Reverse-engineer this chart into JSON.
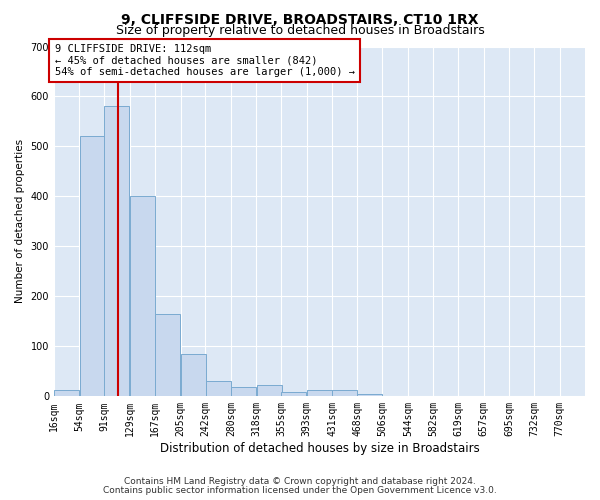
{
  "title": "9, CLIFFSIDE DRIVE, BROADSTAIRS, CT10 1RX",
  "subtitle": "Size of property relative to detached houses in Broadstairs",
  "xlabel": "Distribution of detached houses by size in Broadstairs",
  "ylabel": "Number of detached properties",
  "bin_edges": [
    16,
    54,
    91,
    129,
    167,
    205,
    242,
    280,
    318,
    355,
    393,
    431,
    468,
    506,
    544,
    582,
    619,
    657,
    695,
    732,
    770
  ],
  "bar_heights": [
    12,
    520,
    580,
    400,
    165,
    85,
    30,
    18,
    22,
    8,
    12,
    12,
    5,
    0,
    0,
    0,
    0,
    0,
    0,
    0
  ],
  "bar_color": "#c8d8ee",
  "bar_edgecolor": "#7aaad0",
  "bar_linewidth": 0.7,
  "property_size": 112,
  "red_line_color": "#cc0000",
  "ylim": [
    0,
    700
  ],
  "yticks": [
    0,
    100,
    200,
    300,
    400,
    500,
    600,
    700
  ],
  "annotation_line1": "9 CLIFFSIDE DRIVE: 112sqm",
  "annotation_line2": "← 45% of detached houses are smaller (842)",
  "annotation_line3": "54% of semi-detached houses are larger (1,000) →",
  "annotation_box_facecolor": "#ffffff",
  "annotation_box_edgecolor": "#cc0000",
  "footer_line1": "Contains HM Land Registry data © Crown copyright and database right 2024.",
  "footer_line2": "Contains public sector information licensed under the Open Government Licence v3.0.",
  "fig_facecolor": "#ffffff",
  "plot_background": "#dde8f5",
  "grid_color": "#ffffff",
  "title_fontsize": 10,
  "subtitle_fontsize": 9,
  "xlabel_fontsize": 8.5,
  "ylabel_fontsize": 7.5,
  "tick_fontsize": 7,
  "annotation_fontsize": 7.5,
  "footer_fontsize": 6.5
}
